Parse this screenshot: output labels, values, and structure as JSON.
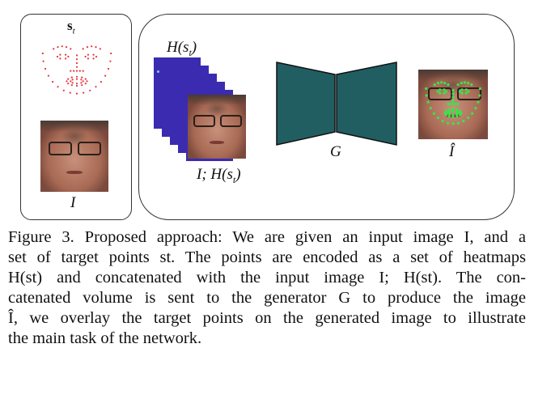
{
  "figure": {
    "labels": {
      "target_points": "s",
      "target_points_sub": "t",
      "input_image": "I",
      "heatmaps": "H(s",
      "heatmaps_sub": "t",
      "heatmaps_close": ")",
      "concat": "I; H(s",
      "concat_sub": "t",
      "concat_close": ")",
      "generator": "G",
      "output": "Î"
    },
    "colors": {
      "heatmap_bg": "#3b2bb0",
      "generator_fill": "#215e62",
      "landmark_red": "#e8323c",
      "landmark_green": "#36e64a"
    }
  },
  "caption": {
    "lines": [
      "Figure 3. Proposed approach: We are given an input image I, and a",
      "set of target points st. The points are encoded as a set of heatmaps",
      "H(st) and concatenated with the input image I; H(st). The con-",
      "catenated volume is sent to the generator G to produce the image",
      "Î, we overlay the target points on the generated image to illustrate",
      "the main task of the network."
    ]
  }
}
